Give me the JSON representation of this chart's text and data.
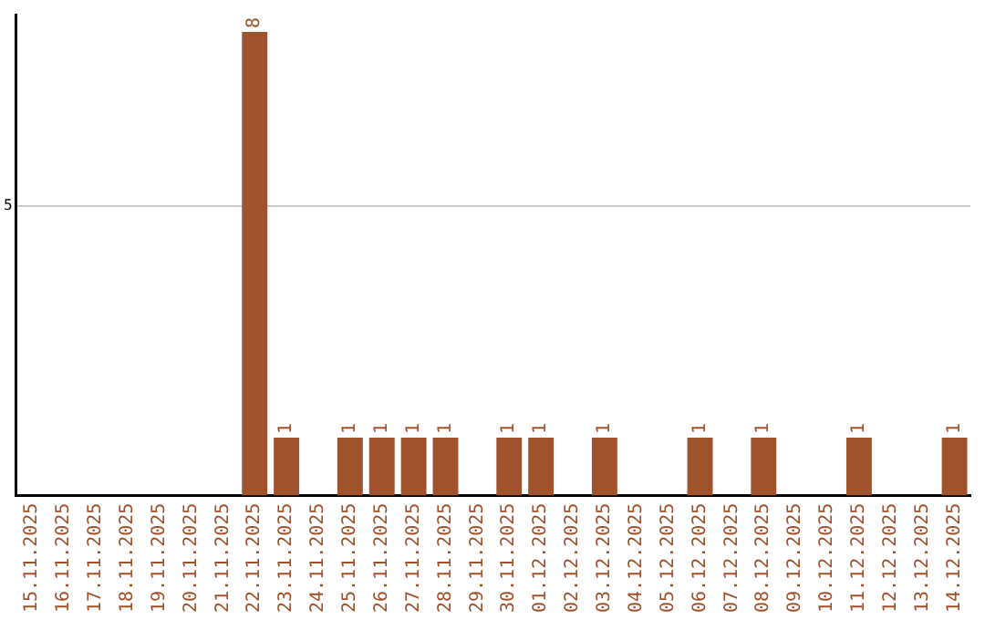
{
  "chart_data": {
    "type": "bar",
    "categories": [
      "15.11.2025",
      "16.11.2025",
      "17.11.2025",
      "18.11.2025",
      "19.11.2025",
      "20.11.2025",
      "21.11.2025",
      "22.11.2025",
      "23.11.2025",
      "24.11.2025",
      "25.11.2025",
      "26.11.2025",
      "27.11.2025",
      "28.11.2025",
      "29.11.2025",
      "30.11.2025",
      "01.12.2025",
      "02.12.2025",
      "03.12.2025",
      "04.12.2025",
      "05.12.2025",
      "06.12.2025",
      "07.12.2025",
      "08.12.2025",
      "09.12.2025",
      "10.12.2025",
      "11.12.2025",
      "12.12.2025",
      "13.12.2025",
      "14.12.2025"
    ],
    "values": [
      0,
      0,
      0,
      0,
      0,
      0,
      0,
      8,
      1,
      0,
      1,
      1,
      1,
      1,
      0,
      1,
      1,
      0,
      1,
      0,
      0,
      1,
      0,
      1,
      0,
      0,
      1,
      0,
      0,
      1
    ],
    "value_labels": [
      null,
      null,
      null,
      null,
      null,
      null,
      null,
      "8",
      "1",
      null,
      "1",
      "1",
      "1",
      "1",
      null,
      "1",
      "1",
      null,
      "1",
      null,
      null,
      "1",
      null,
      "1",
      null,
      null,
      "1",
      null,
      null,
      "1"
    ],
    "color": "#a0522d",
    "ylim": [
      0,
      8.3
    ],
    "yticks": [
      5
    ],
    "grid": "y",
    "legend": false
  }
}
